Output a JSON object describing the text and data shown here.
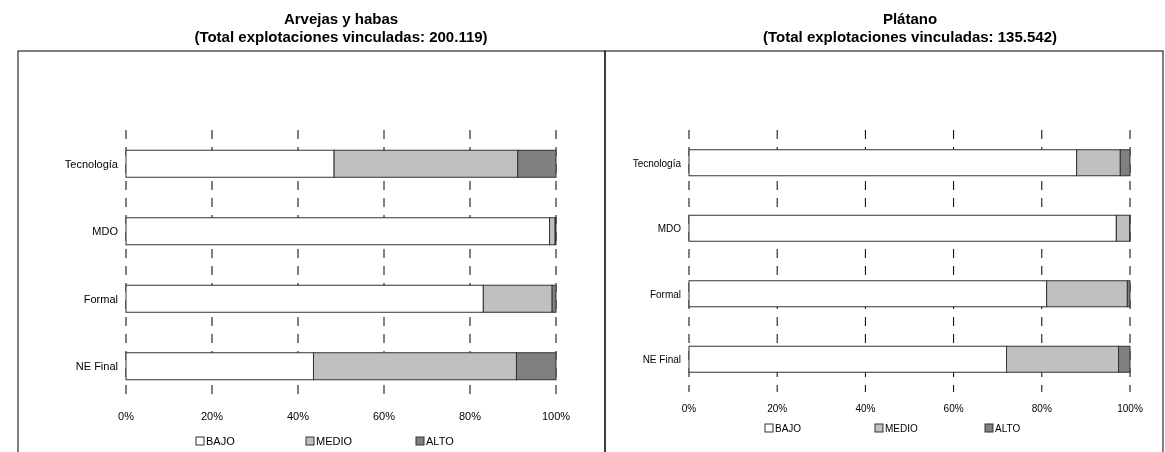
{
  "chart_data": [
    {
      "type": "bar",
      "orientation": "horizontal",
      "stacked": true,
      "title": "Arvejas y habas",
      "subtitle": "(Total explotaciones vinculadas: 200.119)",
      "categories": [
        "Tecnología",
        "MDO",
        "Formal",
        "NE Final"
      ],
      "series": [
        {
          "name": "BAJO",
          "color": "#ffffff",
          "values": [
            48.4,
            98.5,
            83.1,
            43.6
          ]
        },
        {
          "name": "MEDIO",
          "color": "#c0c0c0",
          "values": [
            42.7,
            1.3,
            16.0,
            47.2
          ]
        },
        {
          "name": "ALTO",
          "color": "#808080",
          "values": [
            8.9,
            0.2,
            0.9,
            9.2
          ]
        }
      ],
      "xlim": [
        0,
        100
      ],
      "xticks": [
        {
          "value": 0,
          "label": "0%"
        },
        {
          "value": 20,
          "label": "20%"
        },
        {
          "value": 40,
          "label": "40%"
        },
        {
          "value": 60,
          "label": "60%"
        },
        {
          "value": 80,
          "label": "80%"
        },
        {
          "value": 100,
          "label": "100%"
        }
      ],
      "grid": "x",
      "legend": "bottom"
    },
    {
      "type": "bar",
      "orientation": "horizontal",
      "stacked": true,
      "title": "Plátano",
      "subtitle": "(Total explotaciones vinculadas: 135.542)",
      "categories": [
        "Tecnología",
        "MDO",
        "Formal",
        "NE Final"
      ],
      "series": [
        {
          "name": "BAJO",
          "color": "#ffffff",
          "values": [
            87.9,
            96.9,
            81.1,
            72.0
          ]
        },
        {
          "name": "MEDIO",
          "color": "#c0c0c0",
          "values": [
            9.9,
            3.0,
            18.3,
            25.4
          ]
        },
        {
          "name": "ALTO",
          "color": "#808080",
          "values": [
            2.2,
            0.1,
            0.6,
            2.6
          ]
        }
      ],
      "xlim": [
        0,
        100
      ],
      "xticks": [
        {
          "value": 0,
          "label": "0%"
        },
        {
          "value": 20,
          "label": "20%"
        },
        {
          "value": 40,
          "label": "40%"
        },
        {
          "value": 60,
          "label": "60%"
        },
        {
          "value": 80,
          "label": "80%"
        },
        {
          "value": 100,
          "label": "100%"
        }
      ],
      "grid": "x",
      "legend": "bottom"
    }
  ]
}
